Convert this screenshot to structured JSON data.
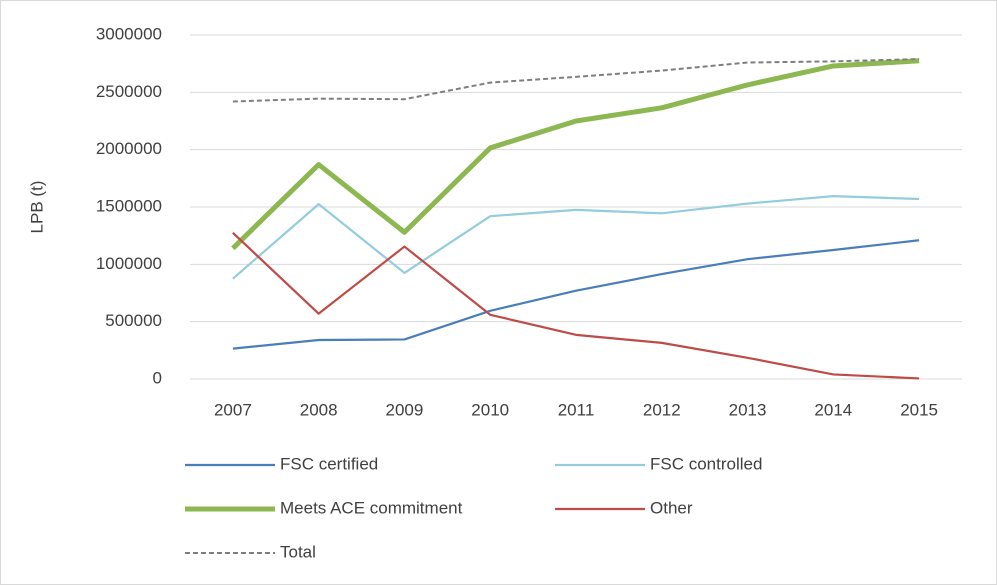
{
  "chart_data": {
    "type": "line",
    "y_label": "LPB (t)",
    "categories": [
      "2007",
      "2008",
      "2009",
      "2010",
      "2011",
      "2012",
      "2013",
      "2014",
      "2015"
    ],
    "ylim": [
      0,
      3000000
    ],
    "yticks": [
      0,
      500000,
      1000000,
      1500000,
      2000000,
      2500000,
      3000000
    ],
    "grid": true,
    "legend": "bottom",
    "series": [
      {
        "name": "FSC certified",
        "color": "#4a7ebb",
        "linestyle": "solid",
        "values": [
          265000,
          340000,
          345000,
          595000,
          770000,
          915000,
          1045000,
          1125000,
          1210000
        ]
      },
      {
        "name": "FSC controlled",
        "color": "#93cddd",
        "linestyle": "solid",
        "values": [
          875000,
          1525000,
          925000,
          1420000,
          1475000,
          1445000,
          1530000,
          1595000,
          1570000
        ]
      },
      {
        "name": "Meets ACE commitment",
        "color": "#8db750",
        "linestyle": "thick",
        "values": [
          1140000,
          1870000,
          1280000,
          2015000,
          2250000,
          2365000,
          2565000,
          2730000,
          2775000
        ]
      },
      {
        "name": "Other",
        "color": "#be4b48",
        "linestyle": "solid",
        "values": [
          1275000,
          570000,
          1155000,
          560000,
          385000,
          315000,
          185000,
          40000,
          5000
        ]
      },
      {
        "name": "Total",
        "color": "#7f7f7f",
        "linestyle": "dashed",
        "values": [
          2420000,
          2445000,
          2440000,
          2585000,
          2635000,
          2690000,
          2760000,
          2770000,
          2790000
        ]
      }
    ]
  }
}
